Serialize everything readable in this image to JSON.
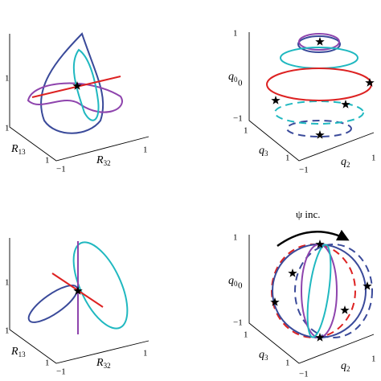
{
  "panels": [
    {
      "ticks": [
        "1",
        "1",
        "1",
        "−1",
        "1"
      ],
      "axis_labels": [
        {
          "symbol": "R",
          "subscript": "13"
        },
        {
          "symbol": "R",
          "subscript": "32"
        }
      ]
    },
    {
      "ticks": [
        "1",
        "0",
        "−1",
        "1",
        "1",
        "−1",
        "1"
      ],
      "axis_labels": [
        {
          "symbol": "q",
          "subscript": "0"
        },
        {
          "symbol": "q",
          "subscript": "3"
        },
        {
          "symbol": "q",
          "subscript": "2"
        }
      ]
    },
    {
      "ticks": [
        "1",
        "1",
        "1",
        "−1",
        "1"
      ],
      "axis_labels": [
        {
          "symbol": "R",
          "subscript": "13"
        },
        {
          "symbol": "R",
          "subscript": "32"
        }
      ]
    },
    {
      "annotation": "ψ inc.",
      "ticks": [
        "1",
        "0",
        "−1",
        "1",
        "1",
        "−1",
        "1"
      ],
      "axis_labels": [
        {
          "symbol": "q",
          "subscript": "0"
        },
        {
          "symbol": "q",
          "subscript": "3"
        },
        {
          "symbol": "q",
          "subscript": "2"
        }
      ]
    }
  ]
}
